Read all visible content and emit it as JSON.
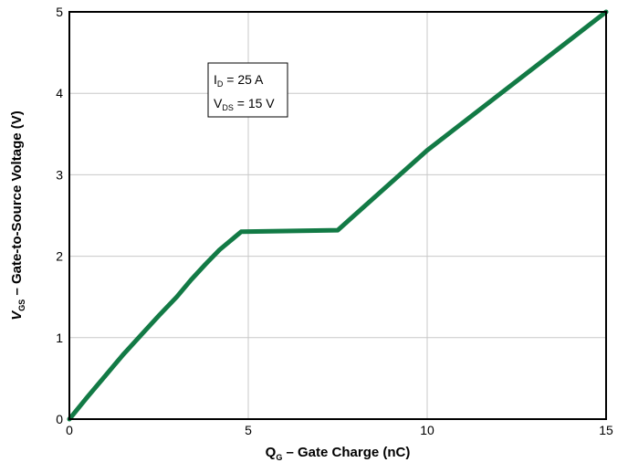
{
  "chart_data": {
    "type": "line",
    "title": "",
    "xlabel": {
      "main": "Q",
      "sub": "G",
      "rest": " – Gate Charge (nC)"
    },
    "ylabel": {
      "main": "V",
      "sub": "GS",
      "rest": " – Gate-to-Source Voltage (V)"
    },
    "xlim": [
      0,
      15
    ],
    "ylim": [
      0,
      5
    ],
    "xticks": [
      0,
      5,
      10,
      15
    ],
    "yticks": [
      0,
      1,
      2,
      3,
      4,
      5
    ],
    "grid": true,
    "series": [
      {
        "color": "#127a45",
        "x": [
          0,
          0.5,
          1,
          1.5,
          2,
          2.5,
          3,
          3.4,
          3.8,
          4.2,
          4.8,
          7.5,
          10,
          15
        ],
        "y": [
          0,
          0.27,
          0.53,
          0.79,
          1.03,
          1.27,
          1.5,
          1.71,
          1.9,
          2.08,
          2.3,
          2.32,
          3.3,
          5.0
        ]
      }
    ],
    "annotation": {
      "position": "top-left",
      "lines": [
        {
          "main": "I",
          "sub": "D",
          "rest": " = 25 A"
        },
        {
          "main": "V",
          "sub": "DS",
          "rest": " = 15 V"
        }
      ]
    }
  }
}
